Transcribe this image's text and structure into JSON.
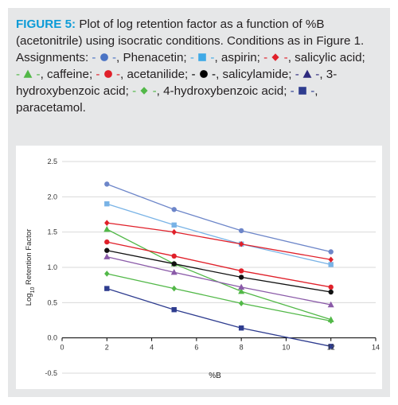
{
  "caption": {
    "lead": "FIGURE 5:",
    "text": "Plot of log retention factor as a function of %B (acetonitrile) using isocratic conditions. Conditions as in Figure 1. Assignments:",
    "assignments": [
      {
        "label": "Phenacetin",
        "color": "#4a73c4",
        "marker": "circle",
        "sep": ";"
      },
      {
        "label": "aspirin",
        "color": "#3fa9e6",
        "marker": "square",
        "sep": ";"
      },
      {
        "label": "salicylic acid",
        "color": "#e0202a",
        "marker": "diamond",
        "sep": ";"
      },
      {
        "label": "caffeine",
        "color": "#52b848",
        "marker": "triangle",
        "sep": ";"
      },
      {
        "label": "acetanilide",
        "color": "#e0202a",
        "marker": "circle",
        "sep": ";"
      },
      {
        "label": "salicylamide",
        "color": "#000000",
        "marker": "circle",
        "sep": ";"
      },
      {
        "label": "3-hydroxybenzoic acid",
        "color": "#2e2a7e",
        "marker": "triangle",
        "sep": ";"
      },
      {
        "label": "4-hydroxybenzoic acid",
        "color": "#52b848",
        "marker": "diamond",
        "sep": ";"
      },
      {
        "label": "paracetamol",
        "color": "#2e3c8f",
        "marker": "square",
        "sep": "."
      }
    ]
  },
  "chart_data": {
    "type": "line",
    "xlabel": "%B",
    "ylabel": "Log10 Retention Factor",
    "xlim": [
      0,
      14
    ],
    "ylim": [
      -0.5,
      2.5
    ],
    "x_ticks": [
      "0",
      "2",
      "4",
      "6",
      "8",
      "10",
      "12",
      "14"
    ],
    "y_ticks": [
      "-0.5",
      "0.0",
      "0.5",
      "1.0",
      "1.5",
      "2.0",
      "2.5"
    ],
    "grid": "horizontal",
    "x": [
      2,
      5,
      8,
      12
    ],
    "series": [
      {
        "name": "Phenacetin",
        "color": "#6d86c9",
        "marker": "circle",
        "values": [
          2.18,
          1.82,
          1.52,
          1.22
        ]
      },
      {
        "name": "aspirin",
        "color": "#79b3e6",
        "marker": "square",
        "values": [
          1.9,
          1.6,
          1.33,
          1.04
        ]
      },
      {
        "name": "salicylic acid",
        "color": "#e0202a",
        "marker": "diamond",
        "values": [
          1.63,
          1.5,
          1.33,
          1.11
        ]
      },
      {
        "name": "caffeine",
        "color": "#52b848",
        "marker": "triangle",
        "values": [
          1.54,
          1.05,
          0.66,
          0.26
        ]
      },
      {
        "name": "acetanilide",
        "color": "#e0202a",
        "marker": "circle",
        "values": [
          1.36,
          1.16,
          0.95,
          0.72
        ]
      },
      {
        "name": "salicylamide",
        "color": "#111111",
        "marker": "circle",
        "values": [
          1.24,
          1.05,
          0.86,
          0.65
        ]
      },
      {
        "name": "3-hydroxybenzoic acid",
        "color": "#8a5aa8",
        "marker": "triangle",
        "values": [
          1.15,
          0.93,
          0.72,
          0.47
        ]
      },
      {
        "name": "4-hydroxybenzoic acid",
        "color": "#52b848",
        "marker": "diamond",
        "values": [
          0.91,
          0.7,
          0.49,
          0.24
        ]
      },
      {
        "name": "paracetamol",
        "color": "#2e3c8f",
        "marker": "square",
        "values": [
          0.7,
          0.4,
          0.14,
          -0.12
        ]
      }
    ]
  }
}
